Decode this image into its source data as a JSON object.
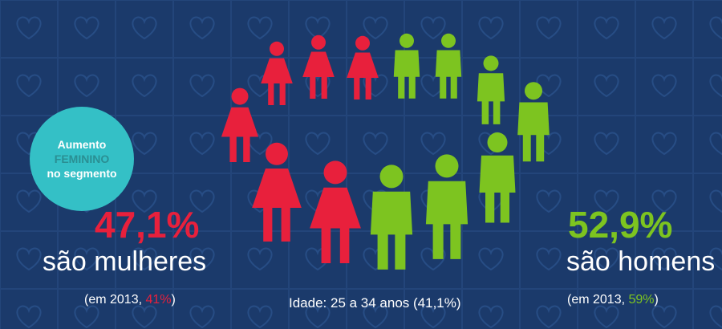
{
  "colors": {
    "background": "#1b3a6b",
    "women": "#e8203c",
    "men": "#7dc420",
    "badge": "#34c0c6"
  },
  "badge": {
    "line1": "Aumento",
    "line2": "FEMININO",
    "line3": "no segmento"
  },
  "women": {
    "percent": "47,1%",
    "caption": "são mulheres",
    "year_prefix": "(em 2013, ",
    "year_value": "41%",
    "year_suffix": ")"
  },
  "men": {
    "percent": "52,9%",
    "caption": "são homens",
    "year_prefix": "(em 2013, ",
    "year_value": "59%",
    "year_suffix": ")"
  },
  "age": {
    "label": "Idade: 25 a 34 anos (41,1%)"
  },
  "icons": {
    "female": "female-figure-icon",
    "male": "male-figure-icon",
    "pattern": "heart-gamepad-pattern"
  }
}
